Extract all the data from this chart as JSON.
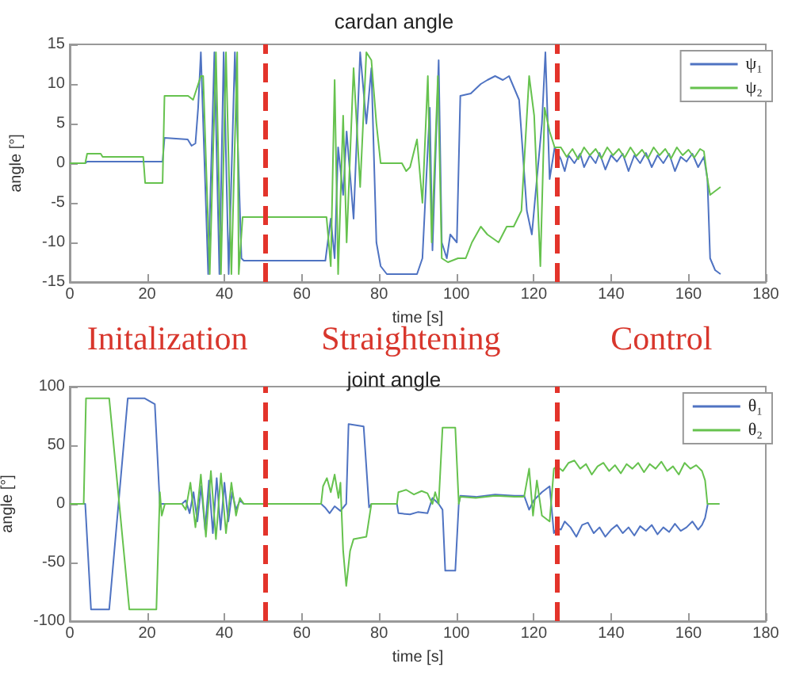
{
  "chart_data": [
    {
      "type": "line",
      "title": "cardan angle",
      "xlabel": "time [s]",
      "ylabel": "angle [°]",
      "xlim": [
        0,
        180
      ],
      "xticks": [
        0,
        20,
        40,
        60,
        80,
        100,
        120,
        140,
        160,
        180
      ],
      "ylim": [
        -15,
        15
      ],
      "yticks": [
        -15,
        -10,
        -5,
        0,
        5,
        10,
        15
      ],
      "grid": false,
      "legend": "top right",
      "ref_lines": [
        {
          "axis": "x",
          "value": 50.5,
          "color": "#e3342b",
          "line_style": "dashed"
        },
        {
          "axis": "x",
          "value": 126,
          "color": "#e3342b",
          "line_style": "dashed"
        }
      ],
      "annotations": [
        "Initalization",
        "Straightening",
        "Control"
      ],
      "series": [
        {
          "name": "ψ₁",
          "color": "#4f73c2",
          "x": [
            0,
            4,
            4.5,
            24,
            24.5,
            30.5,
            31.5,
            32.5,
            33.2,
            33.9,
            35.8,
            37.4,
            38.7,
            39.8,
            41.1,
            42.7,
            44.4,
            45,
            66.1,
            67.5,
            68.5,
            69.4,
            70.7,
            71.6,
            73.4,
            75.1,
            76.7,
            78,
            79.3,
            80.4,
            82,
            89.8,
            91.2,
            93.1,
            93.8,
            95.4,
            96.2,
            97.5,
            98.4,
            100.1,
            101,
            103.7,
            106.3,
            108,
            110,
            112,
            113.6,
            116.2,
            118.2,
            119.5,
            120.8,
            122.1,
            123,
            124.1,
            125.4,
            127,
            128,
            129,
            130.5,
            132,
            133,
            134.5,
            136,
            137,
            138.5,
            140,
            141.5,
            143,
            144.5,
            146,
            147.5,
            149,
            150.5,
            152,
            153.5,
            155,
            156.5,
            158,
            159.5,
            161,
            162.5,
            164,
            164.9,
            165.6,
            166.9,
            168.3
          ],
          "values": [
            0,
            0,
            0.2,
            0.2,
            3.2,
            3,
            2.2,
            2.5,
            7,
            14,
            -14,
            14,
            -14,
            14,
            -14,
            14,
            -12,
            -12.3,
            -12.3,
            -7,
            -12,
            2,
            -4,
            4,
            -7,
            14,
            5,
            12,
            -10,
            -13,
            -14,
            -14,
            -12,
            7,
            -11,
            13,
            -10,
            -12,
            -9,
            -10,
            8.5,
            8.8,
            10,
            10.5,
            11,
            10.5,
            11,
            8,
            -6,
            -9,
            -2,
            5,
            14,
            -2,
            2,
            0.5,
            -1,
            1,
            0,
            1.2,
            -0.5,
            1,
            0,
            1.3,
            -0.8,
            1,
            0.2,
            1.2,
            -1,
            1,
            0,
            1.3,
            -0.5,
            1,
            0,
            1.2,
            -1,
            0.8,
            0.2,
            1.2,
            -0.5,
            0.8,
            -2,
            -12,
            -13.5,
            -14
          ]
        },
        {
          "name": "ψ₂",
          "color": "#66c24e",
          "x": [
            0,
            4,
            4.5,
            8,
            8.5,
            19,
            19.5,
            24,
            24.5,
            30.6,
            31.9,
            33.9,
            34.5,
            36.2,
            37.8,
            39.1,
            40.4,
            41.8,
            43.3,
            43.7,
            44.7,
            66.4,
            67.5,
            68.5,
            69.4,
            70.7,
            71.6,
            73.4,
            75.1,
            76.7,
            78,
            79.3,
            80.4,
            85.9,
            87,
            88,
            89.8,
            91.2,
            92.6,
            93.6,
            95.2,
            96.2,
            97.8,
            100.4,
            102.4,
            104,
            106.3,
            108,
            110.9,
            113,
            114.8,
            116.8,
            118.8,
            120.1,
            121.7,
            122.8,
            124.1,
            125.4,
            127,
            128.5,
            130,
            131.5,
            133,
            134.5,
            136,
            137.5,
            139,
            140.5,
            142,
            143.5,
            145,
            146.5,
            148,
            149.5,
            151,
            152.5,
            154,
            155.5,
            157,
            158.5,
            160,
            161.5,
            163,
            164,
            164.9,
            165.6,
            168.3
          ],
          "values": [
            0,
            0,
            1.2,
            1.2,
            0.8,
            0.8,
            -2.5,
            -2.5,
            8.5,
            8.5,
            8,
            11,
            11,
            -14,
            14,
            -14,
            14,
            -14,
            14,
            -14,
            -6.8,
            -6.8,
            -13,
            10.5,
            -14,
            6,
            -10,
            12,
            -3,
            14,
            13,
            5,
            0,
            0,
            -1,
            -0.5,
            3,
            -5,
            11,
            -10,
            11,
            -12,
            -12.5,
            -12,
            -12,
            -10,
            -8,
            -9,
            -10,
            -8,
            -8,
            -6,
            11,
            6,
            -13,
            7,
            4,
            2,
            2,
            0.8,
            1.8,
            0.5,
            2,
            1,
            1.8,
            0.6,
            2,
            1,
            1.8,
            0.7,
            2,
            0.9,
            1.7,
            0.6,
            2,
            1,
            1.8,
            0.6,
            2,
            1,
            1.7,
            0.7,
            1.8,
            1.5,
            -2,
            -4,
            -3
          ]
        }
      ]
    },
    {
      "type": "line",
      "title": "joint angle",
      "xlabel": "time [s]",
      "ylabel": "angle [°]",
      "xlim": [
        0,
        180
      ],
      "xticks": [
        0,
        20,
        40,
        60,
        80,
        100,
        120,
        140,
        160,
        180
      ],
      "ylim": [
        -100,
        100
      ],
      "yticks": [
        -100,
        -50,
        0,
        50,
        100
      ],
      "grid": false,
      "legend": "top right",
      "ref_lines": [
        {
          "axis": "x",
          "value": 50.5,
          "color": "#e3342b",
          "line_style": "dashed"
        },
        {
          "axis": "x",
          "value": 126,
          "color": "#e3342b",
          "line_style": "dashed"
        }
      ],
      "series": [
        {
          "name": "θ₁",
          "color": "#4f73c2",
          "x": [
            0,
            4,
            5.5,
            10.2,
            15,
            19.4,
            22,
            23.3,
            24.6,
            29,
            30,
            31,
            32,
            33,
            34,
            35,
            36,
            37,
            38,
            39,
            40,
            41,
            42,
            43,
            44,
            45,
            47,
            65,
            66,
            67.2,
            68.5,
            70,
            71.5,
            72.1,
            76,
            77.4,
            78,
            84.6,
            85,
            88,
            90,
            92.5,
            93.8,
            95.4,
            96.4,
            97.1,
            99.7,
            100.6,
            101,
            105,
            110,
            115,
            117.5,
            118.8,
            120,
            122.1,
            124.1,
            125.2,
            126,
            127,
            128,
            129.5,
            131,
            132.5,
            134,
            135.5,
            137,
            138.5,
            140,
            141.5,
            143,
            144.5,
            146,
            147.5,
            149,
            150.5,
            152,
            153.5,
            155,
            156.5,
            158,
            159.5,
            161,
            162.5,
            163.5,
            164.3,
            165,
            168
          ],
          "values": [
            0,
            0,
            -90,
            -90,
            90,
            90,
            85,
            0,
            0,
            0,
            3,
            -8,
            10,
            -15,
            15,
            -22,
            20,
            -25,
            22,
            -22,
            18,
            -15,
            10,
            -5,
            3,
            0,
            0,
            0,
            -3,
            -8,
            -2,
            -6,
            0,
            68,
            66,
            -3,
            0,
            0,
            -8,
            -9,
            -7,
            -8,
            5,
            0,
            -5,
            -57,
            -57,
            0,
            7,
            6,
            8,
            7,
            7,
            -5,
            3,
            10,
            15,
            -25,
            -20,
            -22,
            -15,
            -20,
            -28,
            -18,
            -16,
            -25,
            -20,
            -28,
            -22,
            -18,
            -25,
            -20,
            -27,
            -19,
            -23,
            -18,
            -26,
            -20,
            -24,
            -17,
            -23,
            -20,
            -15,
            -22,
            -18,
            -12,
            0,
            0
          ]
        },
        {
          "name": "θ₂",
          "color": "#66c24e",
          "x": [
            0,
            3.6,
            4.2,
            10.2,
            15.4,
            22.4,
            23.3,
            23.8,
            24.6,
            29,
            30,
            31.2,
            32.5,
            33.9,
            35.2,
            36.5,
            37.8,
            39.1,
            40.4,
            41.8,
            43,
            44,
            45,
            47,
            65,
            65.5,
            66.5,
            67.5,
            68.5,
            69.5,
            70,
            70.7,
            71.5,
            72.5,
            73.4,
            76.7,
            78,
            84.6,
            85,
            87,
            89,
            91,
            92.5,
            93.8,
            94.5,
            95.4,
            96.4,
            99.7,
            100.6,
            101,
            105,
            110,
            115,
            117.5,
            118.8,
            119.8,
            120.8,
            122.1,
            124.1,
            125.2,
            126,
            127.5,
            129,
            130.5,
            132,
            133.5,
            135,
            136.5,
            138,
            139.5,
            141,
            142.5,
            144,
            145.5,
            147,
            148.5,
            150,
            151.5,
            153,
            154.5,
            156,
            157.5,
            159,
            160.5,
            162,
            163.5,
            164.3,
            164.9,
            168
          ],
          "values": [
            0,
            0,
            90,
            90,
            -90,
            -90,
            10,
            -10,
            0,
            0,
            -5,
            18,
            -20,
            25,
            -28,
            28,
            -30,
            26,
            -25,
            18,
            -10,
            5,
            0,
            0,
            0,
            15,
            22,
            10,
            25,
            5,
            18,
            -40,
            -70,
            -40,
            -30,
            -28,
            0,
            0,
            10,
            12,
            8,
            11,
            9,
            0,
            10,
            0,
            65,
            65,
            0,
            6,
            5,
            7,
            6,
            6,
            30,
            -10,
            20,
            -10,
            -15,
            30,
            32,
            28,
            35,
            37,
            30,
            34,
            25,
            32,
            35,
            28,
            33,
            26,
            34,
            30,
            35,
            27,
            34,
            30,
            36,
            28,
            32,
            25,
            35,
            30,
            33,
            28,
            20,
            0,
            0
          ]
        }
      ]
    }
  ]
}
